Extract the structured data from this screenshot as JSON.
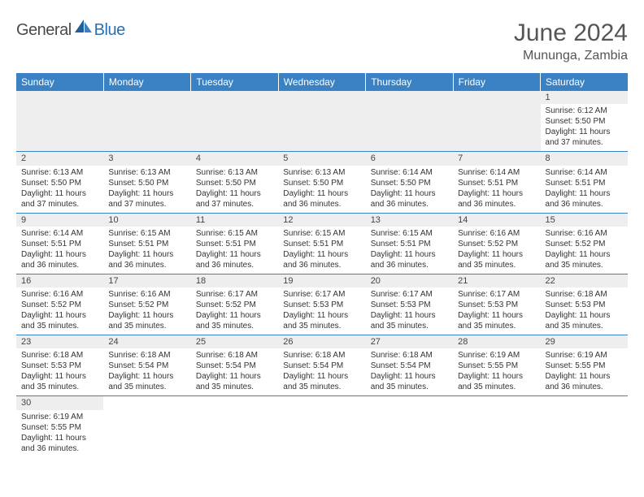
{
  "logo": {
    "text1": "General",
    "text2": "Blue",
    "icon_color": "#2c6fb0",
    "text1_color": "#4a4a4a"
  },
  "title": "June 2024",
  "location": "Mununga, Zambia",
  "header_bg": "#3b82c4",
  "daynum_bg": "#eeeeee",
  "border_color": "#3b82c4",
  "days_of_week": [
    "Sunday",
    "Monday",
    "Tuesday",
    "Wednesday",
    "Thursday",
    "Friday",
    "Saturday"
  ],
  "weeks": [
    [
      null,
      null,
      null,
      null,
      null,
      null,
      {
        "n": "1",
        "sr": "Sunrise: 6:12 AM",
        "ss": "Sunset: 5:50 PM",
        "d1": "Daylight: 11 hours",
        "d2": "and 37 minutes."
      }
    ],
    [
      {
        "n": "2",
        "sr": "Sunrise: 6:13 AM",
        "ss": "Sunset: 5:50 PM",
        "d1": "Daylight: 11 hours",
        "d2": "and 37 minutes."
      },
      {
        "n": "3",
        "sr": "Sunrise: 6:13 AM",
        "ss": "Sunset: 5:50 PM",
        "d1": "Daylight: 11 hours",
        "d2": "and 37 minutes."
      },
      {
        "n": "4",
        "sr": "Sunrise: 6:13 AM",
        "ss": "Sunset: 5:50 PM",
        "d1": "Daylight: 11 hours",
        "d2": "and 37 minutes."
      },
      {
        "n": "5",
        "sr": "Sunrise: 6:13 AM",
        "ss": "Sunset: 5:50 PM",
        "d1": "Daylight: 11 hours",
        "d2": "and 36 minutes."
      },
      {
        "n": "6",
        "sr": "Sunrise: 6:14 AM",
        "ss": "Sunset: 5:50 PM",
        "d1": "Daylight: 11 hours",
        "d2": "and 36 minutes."
      },
      {
        "n": "7",
        "sr": "Sunrise: 6:14 AM",
        "ss": "Sunset: 5:51 PM",
        "d1": "Daylight: 11 hours",
        "d2": "and 36 minutes."
      },
      {
        "n": "8",
        "sr": "Sunrise: 6:14 AM",
        "ss": "Sunset: 5:51 PM",
        "d1": "Daylight: 11 hours",
        "d2": "and 36 minutes."
      }
    ],
    [
      {
        "n": "9",
        "sr": "Sunrise: 6:14 AM",
        "ss": "Sunset: 5:51 PM",
        "d1": "Daylight: 11 hours",
        "d2": "and 36 minutes."
      },
      {
        "n": "10",
        "sr": "Sunrise: 6:15 AM",
        "ss": "Sunset: 5:51 PM",
        "d1": "Daylight: 11 hours",
        "d2": "and 36 minutes."
      },
      {
        "n": "11",
        "sr": "Sunrise: 6:15 AM",
        "ss": "Sunset: 5:51 PM",
        "d1": "Daylight: 11 hours",
        "d2": "and 36 minutes."
      },
      {
        "n": "12",
        "sr": "Sunrise: 6:15 AM",
        "ss": "Sunset: 5:51 PM",
        "d1": "Daylight: 11 hours",
        "d2": "and 36 minutes."
      },
      {
        "n": "13",
        "sr": "Sunrise: 6:15 AM",
        "ss": "Sunset: 5:51 PM",
        "d1": "Daylight: 11 hours",
        "d2": "and 36 minutes."
      },
      {
        "n": "14",
        "sr": "Sunrise: 6:16 AM",
        "ss": "Sunset: 5:52 PM",
        "d1": "Daylight: 11 hours",
        "d2": "and 35 minutes."
      },
      {
        "n": "15",
        "sr": "Sunrise: 6:16 AM",
        "ss": "Sunset: 5:52 PM",
        "d1": "Daylight: 11 hours",
        "d2": "and 35 minutes."
      }
    ],
    [
      {
        "n": "16",
        "sr": "Sunrise: 6:16 AM",
        "ss": "Sunset: 5:52 PM",
        "d1": "Daylight: 11 hours",
        "d2": "and 35 minutes."
      },
      {
        "n": "17",
        "sr": "Sunrise: 6:16 AM",
        "ss": "Sunset: 5:52 PM",
        "d1": "Daylight: 11 hours",
        "d2": "and 35 minutes."
      },
      {
        "n": "18",
        "sr": "Sunrise: 6:17 AM",
        "ss": "Sunset: 5:52 PM",
        "d1": "Daylight: 11 hours",
        "d2": "and 35 minutes."
      },
      {
        "n": "19",
        "sr": "Sunrise: 6:17 AM",
        "ss": "Sunset: 5:53 PM",
        "d1": "Daylight: 11 hours",
        "d2": "and 35 minutes."
      },
      {
        "n": "20",
        "sr": "Sunrise: 6:17 AM",
        "ss": "Sunset: 5:53 PM",
        "d1": "Daylight: 11 hours",
        "d2": "and 35 minutes."
      },
      {
        "n": "21",
        "sr": "Sunrise: 6:17 AM",
        "ss": "Sunset: 5:53 PM",
        "d1": "Daylight: 11 hours",
        "d2": "and 35 minutes."
      },
      {
        "n": "22",
        "sr": "Sunrise: 6:18 AM",
        "ss": "Sunset: 5:53 PM",
        "d1": "Daylight: 11 hours",
        "d2": "and 35 minutes."
      }
    ],
    [
      {
        "n": "23",
        "sr": "Sunrise: 6:18 AM",
        "ss": "Sunset: 5:53 PM",
        "d1": "Daylight: 11 hours",
        "d2": "and 35 minutes."
      },
      {
        "n": "24",
        "sr": "Sunrise: 6:18 AM",
        "ss": "Sunset: 5:54 PM",
        "d1": "Daylight: 11 hours",
        "d2": "and 35 minutes."
      },
      {
        "n": "25",
        "sr": "Sunrise: 6:18 AM",
        "ss": "Sunset: 5:54 PM",
        "d1": "Daylight: 11 hours",
        "d2": "and 35 minutes."
      },
      {
        "n": "26",
        "sr": "Sunrise: 6:18 AM",
        "ss": "Sunset: 5:54 PM",
        "d1": "Daylight: 11 hours",
        "d2": "and 35 minutes."
      },
      {
        "n": "27",
        "sr": "Sunrise: 6:18 AM",
        "ss": "Sunset: 5:54 PM",
        "d1": "Daylight: 11 hours",
        "d2": "and 35 minutes."
      },
      {
        "n": "28",
        "sr": "Sunrise: 6:19 AM",
        "ss": "Sunset: 5:55 PM",
        "d1": "Daylight: 11 hours",
        "d2": "and 35 minutes."
      },
      {
        "n": "29",
        "sr": "Sunrise: 6:19 AM",
        "ss": "Sunset: 5:55 PM",
        "d1": "Daylight: 11 hours",
        "d2": "and 36 minutes."
      }
    ],
    [
      {
        "n": "30",
        "sr": "Sunrise: 6:19 AM",
        "ss": "Sunset: 5:55 PM",
        "d1": "Daylight: 11 hours",
        "d2": "and 36 minutes."
      },
      null,
      null,
      null,
      null,
      null,
      null
    ]
  ]
}
